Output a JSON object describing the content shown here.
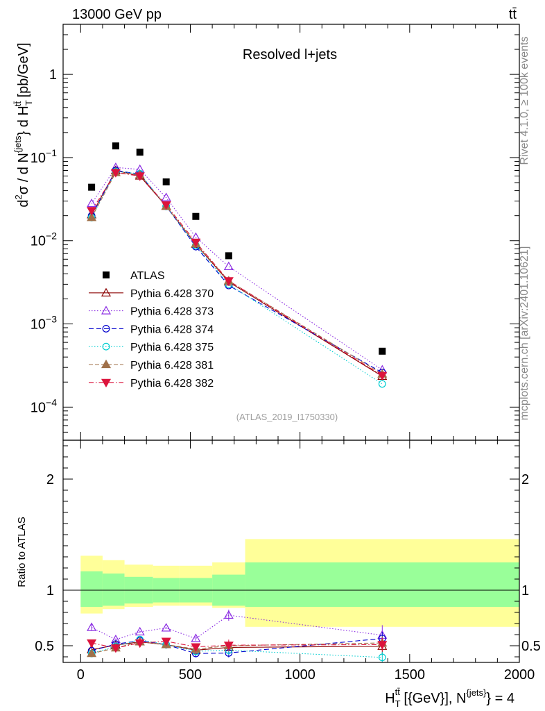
{
  "header": {
    "left": "13000 GeV pp",
    "right": "tt̄"
  },
  "side_labels": {
    "rivet": "Rivet 4.1.0, ≥ 100k events",
    "mcplots": "mcplots.cern.ch [arXiv:2401.10621]"
  },
  "chart_data": {
    "type": "scatter",
    "title": "Resolved l+jets",
    "analysis_tag": "(ATLAS_2019_I1750330)",
    "xlabel": "H_T^{tt̄} [{GeV}], N^{jets} = 4",
    "xlabel_parts": {
      "h": "H",
      "sub": "T",
      "sup": "tt̄",
      "mid": " [{GeV}], N",
      "sup2": "{jets}",
      "tail": "} = 4"
    },
    "ylabel": "d²σ / d N^{jets}} d H_T^{tt̄} [pb/GeV]",
    "ylabel_parts": {
      "a": "d",
      "a_sup": "2",
      "b": "σ  /  d N",
      "b_sup": "{jets",
      "c": "} d H",
      "c_sub": "T",
      "c_sup": "tt̄",
      "d": " [pb/GeV]"
    },
    "ratio_ylabel": "Ratio to ATLAS",
    "xlim": [
      -80,
      2000
    ],
    "ylim_log": [
      4e-05,
      4
    ],
    "ratio_ylim": [
      0.35,
      2.35
    ],
    "x_ticks": [
      0,
      500,
      1000,
      1500,
      2000
    ],
    "x_tick_labels": [
      "0",
      "500",
      "1000",
      "1500",
      "2000"
    ],
    "y_ticks": [
      0.0001,
      0.001,
      0.01,
      0.1,
      1
    ],
    "y_tick_labels": [
      {
        "base": "10",
        "exp": "−4"
      },
      {
        "base": "10",
        "exp": "−3"
      },
      {
        "base": "10",
        "exp": "−2"
      },
      {
        "base": "10",
        "exp": "−1"
      },
      {
        "base": "1",
        "exp": ""
      }
    ],
    "ratio_ticks": [
      0.5,
      1,
      2
    ],
    "ratio_tick_labels": [
      "0.5",
      "1",
      "2"
    ],
    "bins": [
      [
        0,
        100
      ],
      [
        100,
        200
      ],
      [
        200,
        330
      ],
      [
        330,
        450
      ],
      [
        450,
        600
      ],
      [
        600,
        750
      ],
      [
        750,
        2000
      ]
    ],
    "x": [
      50,
      160,
      270,
      390,
      525,
      675,
      1375
    ],
    "data": {
      "name": "ATLAS",
      "values": [
        0.044,
        0.138,
        0.116,
        0.051,
        0.0196,
        0.0066,
        0.00047
      ],
      "band_inner": [
        [
          0.85,
          1.17
        ],
        [
          0.86,
          1.15
        ],
        [
          0.88,
          1.12
        ],
        [
          0.89,
          1.11
        ],
        [
          0.89,
          1.11
        ],
        [
          0.86,
          1.14
        ],
        [
          0.85,
          1.25
        ]
      ],
      "band_outer": [
        [
          0.79,
          1.31
        ],
        [
          0.83,
          1.27
        ],
        [
          0.85,
          1.23
        ],
        [
          0.86,
          1.22
        ],
        [
          0.86,
          1.22
        ],
        [
          0.84,
          1.25
        ],
        [
          0.67,
          1.46
        ]
      ]
    },
    "series": [
      {
        "name": "Pythia 6.428 370",
        "color": "#8b0000",
        "marker": "triangle-up-open",
        "dash": "",
        "values": [
          0.0205,
          0.07,
          0.06,
          0.026,
          0.0091,
          0.0032,
          0.000235
        ]
      },
      {
        "name": "Pythia 6.428 373",
        "color": "#8a2be2",
        "marker": "triangle-up-open",
        "dash": "1.5 2.5",
        "values": [
          0.028,
          0.076,
          0.072,
          0.033,
          0.011,
          0.0049,
          0.00028
        ]
      },
      {
        "name": "Pythia 6.428 374",
        "color": "#0000cd",
        "marker": "circle-open",
        "dash": "7 4",
        "values": [
          0.02,
          0.07,
          0.063,
          0.026,
          0.0085,
          0.0029,
          0.00026
        ]
      },
      {
        "name": "Pythia 6.428 375",
        "color": "#00ced1",
        "marker": "circle-open",
        "dash": "1.5 2.5",
        "values": [
          0.019,
          0.068,
          0.064,
          0.026,
          0.0088,
          0.003,
          0.00019
        ]
      },
      {
        "name": "Pythia 6.428 381",
        "color": "#a0714a",
        "marker": "triangle-up-filled",
        "dash": "6 3",
        "values": [
          0.019,
          0.066,
          0.062,
          0.026,
          0.0092,
          0.0033,
          0.00025
        ]
      },
      {
        "name": "Pythia 6.428 382",
        "color": "#dc143c",
        "marker": "triangle-down-filled",
        "dash": "7 3 1.5 3",
        "values": [
          0.023,
          0.066,
          0.06,
          0.027,
          0.0096,
          0.0033,
          0.00024
        ]
      }
    ],
    "ratios": [
      [
        0.465,
        0.505,
        0.535,
        0.51,
        0.46,
        0.485,
        0.495
      ],
      [
        0.665,
        0.555,
        0.625,
        0.66,
        0.565,
        0.775,
        0.595
      ],
      [
        0.455,
        0.515,
        0.545,
        0.51,
        0.43,
        0.435,
        0.565
      ],
      [
        0.43,
        0.495,
        0.555,
        0.51,
        0.45,
        0.46,
        0.395
      ],
      [
        0.43,
        0.48,
        0.535,
        0.51,
        0.47,
        0.5,
        0.525
      ],
      [
        0.525,
        0.48,
        0.525,
        0.54,
        0.49,
        0.505,
        0.51
      ]
    ],
    "ratio_errors": [
      [
        0.02,
        0.01,
        0.01,
        0.01,
        0.02,
        0.04,
        0.08
      ],
      [
        0.03,
        0.01,
        0.01,
        0.01,
        0.02,
        0.05,
        0.09
      ],
      [
        0.03,
        0.01,
        0.01,
        0.01,
        0.03,
        0.04,
        0.06
      ],
      [
        0.02,
        0.01,
        0.01,
        0.01,
        0.02,
        0.04,
        0.05
      ],
      [
        0.02,
        0.01,
        0.01,
        0.01,
        0.02,
        0.04,
        0.06
      ],
      [
        0.02,
        0.01,
        0.01,
        0.01,
        0.03,
        0.05,
        0.06
      ]
    ]
  }
}
